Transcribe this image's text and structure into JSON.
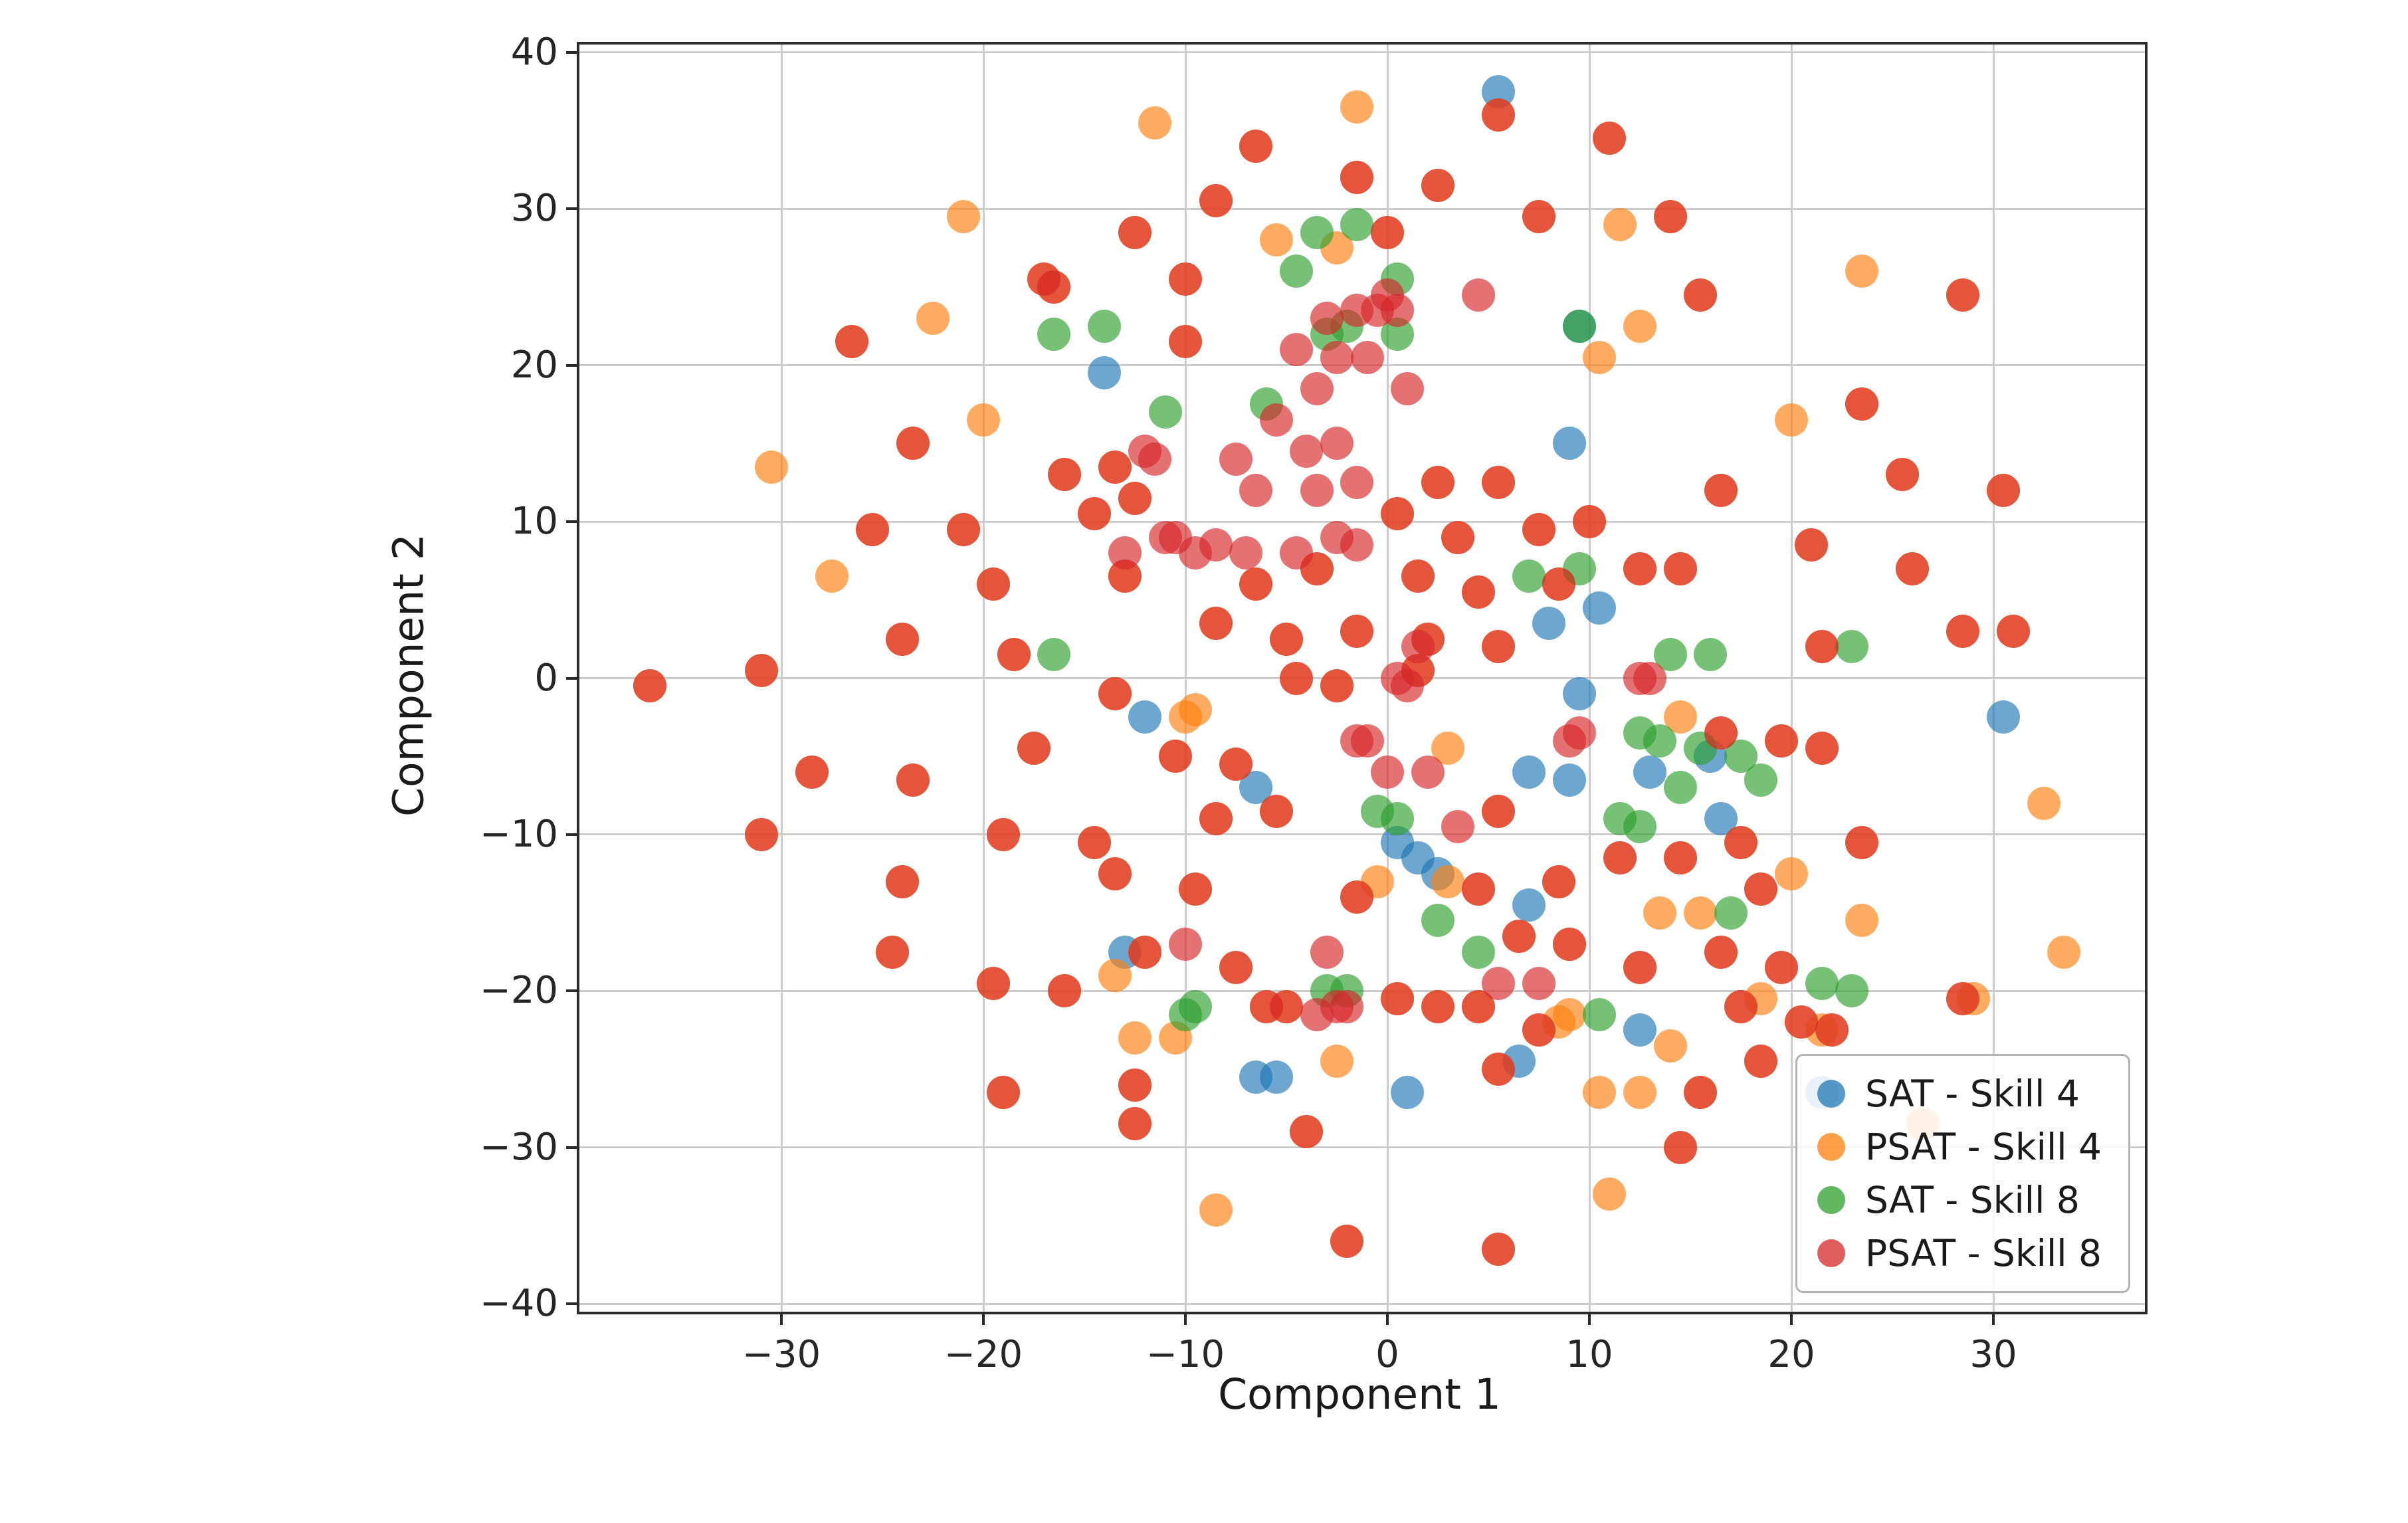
{
  "figure": {
    "background": "#ffffff",
    "axis_color": "#2b2b2b",
    "grid_color": "#cccccc"
  },
  "chart_data": {
    "type": "scatter",
    "title": "",
    "xlabel": "Component 1",
    "ylabel": "Component 2",
    "xlim": [
      -40,
      37.5
    ],
    "ylim": [
      -40.5,
      40.5
    ],
    "grid": true,
    "legend_position": "lower right",
    "marker_alpha": 0.65,
    "xticks": [
      {
        "value": -30,
        "label": "−30"
      },
      {
        "value": -20,
        "label": "−20"
      },
      {
        "value": -10,
        "label": "−10"
      },
      {
        "value": 0,
        "label": "0"
      },
      {
        "value": 10,
        "label": "10"
      },
      {
        "value": 20,
        "label": "20"
      },
      {
        "value": 30,
        "label": "30"
      }
    ],
    "yticks": [
      {
        "value": -40,
        "label": "−40"
      },
      {
        "value": -30,
        "label": "−30"
      },
      {
        "value": -20,
        "label": "−20"
      },
      {
        "value": -10,
        "label": "−10"
      },
      {
        "value": 0,
        "label": "0"
      },
      {
        "value": 10,
        "label": "10"
      },
      {
        "value": 20,
        "label": "20"
      },
      {
        "value": 30,
        "label": "30"
      },
      {
        "value": 40,
        "label": "40"
      }
    ],
    "overlap_points": [
      [
        5.5,
        36
      ],
      [
        11,
        34.5
      ],
      [
        -6.5,
        34
      ],
      [
        -1.5,
        32
      ],
      [
        2.5,
        31.5
      ],
      [
        -8.5,
        30.5
      ],
      [
        7.5,
        29.5
      ],
      [
        14,
        29.5
      ],
      [
        -12.5,
        28.5
      ],
      [
        0,
        28.5
      ],
      [
        -17,
        25.5
      ],
      [
        -16.5,
        25
      ],
      [
        -10,
        25.5
      ],
      [
        15.5,
        24.5
      ],
      [
        28.5,
        24.5
      ],
      [
        -26.5,
        21.5
      ],
      [
        -10,
        21.5
      ],
      [
        25.5,
        13
      ],
      [
        30.5,
        12
      ],
      [
        23.5,
        17.5
      ],
      [
        16.5,
        12
      ],
      [
        -23.5,
        15
      ],
      [
        -13.5,
        13.5
      ],
      [
        -16,
        13
      ],
      [
        -25.5,
        9.5
      ],
      [
        -21,
        9.5
      ],
      [
        -12.5,
        11.5
      ],
      [
        -14.5,
        10.5
      ],
      [
        2.5,
        12.5
      ],
      [
        5.5,
        12.5
      ],
      [
        0.5,
        10.5
      ],
      [
        3.5,
        9
      ],
      [
        7.5,
        9.5
      ],
      [
        10,
        10
      ],
      [
        21,
        8.5
      ],
      [
        -19.5,
        6
      ],
      [
        -13,
        6.5
      ],
      [
        -6.5,
        6
      ],
      [
        -3.5,
        7
      ],
      [
        1.5,
        6.5
      ],
      [
        4.5,
        5.5
      ],
      [
        8.5,
        6
      ],
      [
        12.5,
        7
      ],
      [
        14.5,
        7
      ],
      [
        26,
        7
      ],
      [
        -24,
        2.5
      ],
      [
        -18.5,
        1.5
      ],
      [
        -8.5,
        3.5
      ],
      [
        -5,
        2.5
      ],
      [
        -1.5,
        3
      ],
      [
        2,
        2.5
      ],
      [
        5.5,
        2
      ],
      [
        28.5,
        3
      ],
      [
        31,
        3
      ],
      [
        -36.5,
        -0.5
      ],
      [
        -31,
        0.5
      ],
      [
        -13.5,
        -1
      ],
      [
        -4.5,
        0
      ],
      [
        -2.5,
        -0.5
      ],
      [
        1.5,
        0.5
      ],
      [
        21.5,
        2
      ],
      [
        -28.5,
        -6
      ],
      [
        -23.5,
        -6.5
      ],
      [
        -17.5,
        -4.5
      ],
      [
        -10.5,
        -5
      ],
      [
        -7.5,
        -5.5
      ],
      [
        16.5,
        -3.5
      ],
      [
        19.5,
        -4
      ],
      [
        21.5,
        -4.5
      ],
      [
        -31,
        -10
      ],
      [
        -24,
        -13
      ],
      [
        -19,
        -10
      ],
      [
        -14.5,
        -10.5
      ],
      [
        -8.5,
        -9
      ],
      [
        -5.5,
        -8.5
      ],
      [
        5.5,
        -8.5
      ],
      [
        11.5,
        -11.5
      ],
      [
        14.5,
        -11.5
      ],
      [
        17.5,
        -10.5
      ],
      [
        23.5,
        -10.5
      ],
      [
        -13.5,
        -12.5
      ],
      [
        -9.5,
        -13.5
      ],
      [
        -1.5,
        -14
      ],
      [
        4.5,
        -13.5
      ],
      [
        8.5,
        -13
      ],
      [
        18.5,
        -13.5
      ],
      [
        -24.5,
        -17.5
      ],
      [
        -12,
        -17.5
      ],
      [
        -7.5,
        -18.5
      ],
      [
        6.5,
        -16.5
      ],
      [
        9,
        -17
      ],
      [
        12.5,
        -18.5
      ],
      [
        16.5,
        -17.5
      ],
      [
        19.5,
        -18.5
      ],
      [
        -19.5,
        -19.5
      ],
      [
        -16,
        -20
      ],
      [
        -6,
        -21
      ],
      [
        -5,
        -21
      ],
      [
        0.5,
        -20.5
      ],
      [
        2.5,
        -21
      ],
      [
        4.5,
        -21
      ],
      [
        7.5,
        -22.5
      ],
      [
        17.5,
        -21
      ],
      [
        20.5,
        -22
      ],
      [
        22,
        -22.5
      ],
      [
        28.5,
        -20.5
      ],
      [
        -12.5,
        -26
      ],
      [
        -19,
        -26.5
      ],
      [
        5.5,
        -25
      ],
      [
        15.5,
        -26.5
      ],
      [
        18.5,
        -24.5
      ],
      [
        -12.5,
        -28.5
      ],
      [
        -4,
        -29
      ],
      [
        14.5,
        -30
      ],
      [
        -2,
        -36
      ],
      [
        5.5,
        -36.5
      ]
    ],
    "series": [
      {
        "name": "SAT - Skill 4",
        "color": "#1f77b4",
        "points": [
          [
            5.5,
            37.5
          ],
          [
            -14,
            19.5
          ],
          [
            9.5,
            22.5
          ],
          [
            9,
            15
          ],
          [
            10.5,
            4.5
          ],
          [
            8,
            3.5
          ],
          [
            9.5,
            -1
          ],
          [
            -12,
            -2.5
          ],
          [
            -6.5,
            -7
          ],
          [
            7,
            -6
          ],
          [
            9,
            -6.5
          ],
          [
            13,
            -6
          ],
          [
            16,
            -5
          ],
          [
            16.5,
            -9
          ],
          [
            0.5,
            -10.5
          ],
          [
            1.5,
            -11.5
          ],
          [
            2.5,
            -12.5
          ],
          [
            7,
            -14.5
          ],
          [
            -13,
            -17.5
          ],
          [
            -6.5,
            -25.5
          ],
          [
            -5.5,
            -25.5
          ],
          [
            1,
            -26.5
          ],
          [
            6.5,
            -24.5
          ],
          [
            12.5,
            -22.5
          ],
          [
            21.5,
            -26.5
          ],
          [
            30.5,
            -2.5
          ]
        ]
      },
      {
        "name": "PSAT - Skill 4",
        "color": "#ff7f0e",
        "also_includes": "overlap_points",
        "points": [
          [
            -30.5,
            13.5
          ],
          [
            -27.5,
            6.5
          ],
          [
            -22.5,
            23
          ],
          [
            -21,
            29.5
          ],
          [
            -11.5,
            35.5
          ],
          [
            -5.5,
            28
          ],
          [
            -2.5,
            27.5
          ],
          [
            -1.5,
            36.5
          ],
          [
            11.5,
            29
          ],
          [
            10.5,
            20.5
          ],
          [
            12.5,
            22.5
          ],
          [
            20,
            16.5
          ],
          [
            23.5,
            26
          ],
          [
            -20,
            16.5
          ],
          [
            -10,
            -2.5
          ],
          [
            -9.5,
            -2
          ],
          [
            -13.5,
            -19
          ],
          [
            -12.5,
            -23
          ],
          [
            -10.5,
            -23
          ],
          [
            -2.5,
            -24.5
          ],
          [
            -0.5,
            -13
          ],
          [
            3,
            -4.5
          ],
          [
            3,
            -13
          ],
          [
            9,
            -21.5
          ],
          [
            8.5,
            -22
          ],
          [
            14,
            -23.5
          ],
          [
            15.5,
            -15
          ],
          [
            13.5,
            -15
          ],
          [
            18.5,
            -20.5
          ],
          [
            12.5,
            -26.5
          ],
          [
            -8.5,
            -34
          ],
          [
            11,
            -33
          ],
          [
            32.5,
            -8
          ],
          [
            33.5,
            -17.5
          ],
          [
            29,
            -20.5
          ],
          [
            26.5,
            -28.5
          ],
          [
            21.5,
            -22.5
          ],
          [
            10.5,
            -26.5
          ],
          [
            20,
            -12.5
          ],
          [
            23.5,
            -15.5
          ],
          [
            14.5,
            -2.5
          ]
        ]
      },
      {
        "name": "SAT - Skill 8",
        "color": "#2ca02c",
        "points": [
          [
            -1.5,
            29
          ],
          [
            0.5,
            25.5
          ],
          [
            -4.5,
            26
          ],
          [
            -2,
            22.5
          ],
          [
            -3,
            22
          ],
          [
            -16.5,
            22
          ],
          [
            -14,
            22.5
          ],
          [
            -11,
            17
          ],
          [
            0.5,
            22
          ],
          [
            9.5,
            7
          ],
          [
            7,
            6.5
          ],
          [
            14,
            1.5
          ],
          [
            16,
            1.5
          ],
          [
            23,
            2
          ],
          [
            12.5,
            -3.5
          ],
          [
            13.5,
            -4
          ],
          [
            15.5,
            -4.5
          ],
          [
            17.5,
            -5
          ],
          [
            18.5,
            -6.5
          ],
          [
            14.5,
            -7
          ],
          [
            11.5,
            -9
          ],
          [
            12.5,
            -9.5
          ],
          [
            -0.5,
            -8.5
          ],
          [
            0.5,
            -9
          ],
          [
            2.5,
            -15.5
          ],
          [
            4.5,
            -17.5
          ],
          [
            -2,
            -20
          ],
          [
            -3,
            -20
          ],
          [
            -9.5,
            -21
          ],
          [
            -10,
            -21.5
          ],
          [
            10.5,
            -21.5
          ],
          [
            23,
            -20
          ],
          [
            21.5,
            -19.5
          ],
          [
            -16.5,
            1.5
          ],
          [
            17,
            -15
          ],
          [
            9.5,
            22.5
          ],
          [
            -6,
            17.5
          ],
          [
            -3.5,
            28.5
          ]
        ]
      },
      {
        "name": "PSAT - Skill 8",
        "color": "#d62728",
        "also_includes": "overlap_points",
        "points": [
          [
            -3,
            23
          ],
          [
            -1.5,
            23.5
          ],
          [
            -0.5,
            23.5
          ],
          [
            0,
            24.5
          ],
          [
            0.5,
            23.5
          ],
          [
            -4.5,
            21
          ],
          [
            -2.5,
            20.5
          ],
          [
            -1,
            20.5
          ],
          [
            -3.5,
            18.5
          ],
          [
            -5.5,
            16.5
          ],
          [
            -2.5,
            15
          ],
          [
            -4,
            14.5
          ],
          [
            -11.5,
            14
          ],
          [
            -12,
            14.5
          ],
          [
            -6.5,
            12
          ],
          [
            -3.5,
            12
          ],
          [
            -1.5,
            12.5
          ],
          [
            -10.5,
            9
          ],
          [
            -11,
            9
          ],
          [
            -8.5,
            8.5
          ],
          [
            -13,
            8
          ],
          [
            -9.5,
            8
          ],
          [
            -7,
            8
          ],
          [
            -4.5,
            8
          ],
          [
            -2.5,
            9
          ],
          [
            -1.5,
            8.5
          ],
          [
            1,
            -0.5
          ],
          [
            0.5,
            0
          ],
          [
            -1.5,
            -4
          ],
          [
            -1,
            -4
          ],
          [
            0,
            -6
          ],
          [
            2,
            -6
          ],
          [
            3.5,
            -9.5
          ],
          [
            9.5,
            -3.5
          ],
          [
            9,
            -4
          ],
          [
            12.5,
            0
          ],
          [
            13,
            0
          ],
          [
            -3,
            -17.5
          ],
          [
            -10,
            -17
          ],
          [
            -3.5,
            -21.5
          ],
          [
            -2.5,
            -21
          ],
          [
            -2,
            -21
          ],
          [
            5.5,
            -19.5
          ],
          [
            7.5,
            -19.5
          ],
          [
            1.5,
            2
          ],
          [
            -7.5,
            14
          ],
          [
            4.5,
            24.5
          ],
          [
            1,
            18.5
          ]
        ]
      }
    ]
  }
}
